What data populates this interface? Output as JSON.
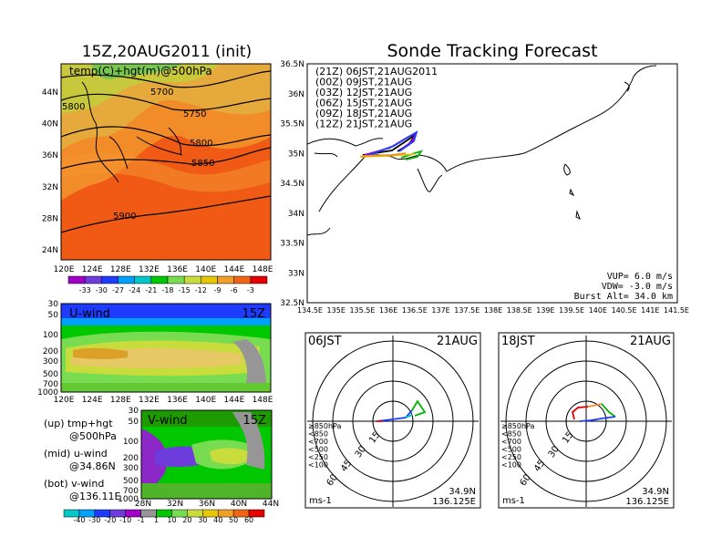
{
  "left_title": "15Z,20AUG2011 (init)",
  "right_title": "Sonde Tracking Forecast",
  "map500": {
    "label": "temp(C)+hgt(m)@500hPa",
    "lat_ticks": [
      "44N",
      "40N",
      "36N",
      "32N",
      "28N",
      "24N"
    ],
    "lon_ticks": [
      "120E",
      "124E",
      "128E",
      "132E",
      "136E",
      "140E",
      "144E",
      "148E"
    ],
    "contours": [
      "5700",
      "5750",
      "5800",
      "5850",
      "5900",
      "5800"
    ],
    "colorbar": [
      "-33",
      "-30",
      "-27",
      "-24",
      "-21",
      "-18",
      "-15",
      "-12",
      "-9",
      "-6",
      "-3"
    ]
  },
  "uwind": {
    "label": "U-wind",
    "time": "15Z",
    "p_ticks": [
      "30",
      "50",
      "100",
      "200",
      "300",
      "500",
      "700",
      "1000"
    ],
    "lon_ticks": [
      "120E",
      "124E",
      "128E",
      "132E",
      "136E",
      "140E",
      "144E",
      "148E"
    ]
  },
  "vwind": {
    "label": "V-wind",
    "time": "15Z",
    "p_ticks": [
      "30",
      "50",
      "100",
      "200",
      "300",
      "500",
      "700",
      "1000"
    ],
    "lat_ticks": [
      "28N",
      "32N",
      "36N",
      "40N",
      "44N"
    ],
    "colorbar": [
      "-40",
      "-30",
      "-20",
      "-10",
      "-1",
      "1",
      "10",
      "20",
      "30",
      "40",
      "50",
      "60"
    ]
  },
  "legend_notes": [
    {
      "a": "(up) tmp+hgt",
      "b": "@500hPa"
    },
    {
      "a": "(mid) u-wind",
      "b": "@34.86N"
    },
    {
      "a": "(bot) v-wind",
      "b": "@136.11E"
    }
  ],
  "track_map": {
    "lat_ticks": [
      "36.5N",
      "36N",
      "35.5N",
      "35N",
      "34.5N",
      "34N",
      "33.5N",
      "33N",
      "32.5N"
    ],
    "lon_ticks": [
      "134.5E",
      "135E",
      "135.5E",
      "136E",
      "136.5E",
      "137E",
      "137.5E",
      "138E",
      "138.5E",
      "139E",
      "139.5E",
      "140E",
      "140.5E",
      "141E",
      "141.5E"
    ],
    "legend": [
      {
        "text": "(21Z)  06JST,21AUG2011",
        "color": "#000000"
      },
      {
        "text": "(00Z)  09JST,21AUG",
        "color": "#a000c8"
      },
      {
        "text": "(03Z)  12JST,21AUG",
        "color": "#1e3cff"
      },
      {
        "text": "(06Z)  15JST,21AUG",
        "color": "#00b400"
      },
      {
        "text": "(09Z)  18JST,21AUG",
        "color": "#e6c800"
      },
      {
        "text": "(12Z)  21JST,21AUG",
        "color": "#f08c28"
      }
    ],
    "vup": "VUP=  6.0  m/s",
    "vdw": "VDW=  -3.0  m/s",
    "burst": "Burst Alt=  34.0  km"
  },
  "hodo_left": {
    "time": "06JST",
    "date": "21AUG",
    "lat": "34.9N",
    "lon": "136.125E",
    "unit": "ms-1"
  },
  "hodo_right": {
    "time": "18JST",
    "date": "21AUG",
    "lat": "34.9N",
    "lon": "136.125E",
    "unit": "ms-1"
  },
  "hodo_rings": [
    "15",
    "30",
    "45",
    "60"
  ],
  "hodo_levels": [
    {
      "text": "≥850hPa",
      "color": "#e60000"
    },
    {
      "text": "<850",
      "color": "#f08c28"
    },
    {
      "text": "<700",
      "color": "#e6c800"
    },
    {
      "text": "<500",
      "color": "#00b400"
    },
    {
      "text": "<250",
      "color": "#00c8c8"
    },
    {
      "text": "<100",
      "color": "#1e3cff"
    }
  ]
}
